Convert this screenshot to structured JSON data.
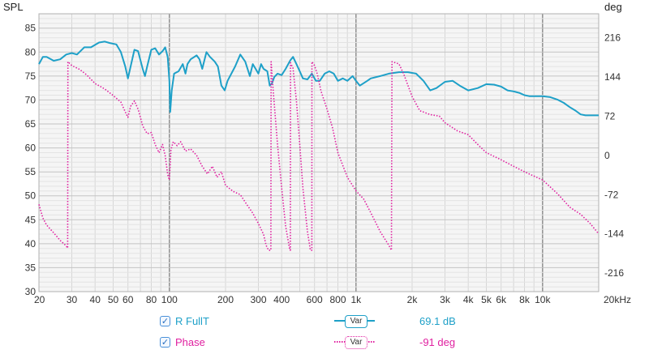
{
  "chart_data": {
    "type": "line",
    "x_scale": "log",
    "xlim": [
      20,
      20000
    ],
    "left_axis": {
      "label": "SPL",
      "ylim": [
        30,
        88
      ],
      "ticks": [
        30,
        35,
        40,
        45,
        50,
        55,
        60,
        65,
        70,
        75,
        80,
        85
      ]
    },
    "right_axis": {
      "label": "deg",
      "ylim": [
        -250,
        260
      ],
      "ticks": [
        -216,
        -144,
        -72,
        0,
        72,
        144,
        216
      ]
    },
    "x_ticks": [
      {
        "v": 20,
        "label": "20"
      },
      {
        "v": 30,
        "label": "30"
      },
      {
        "v": 40,
        "label": "40"
      },
      {
        "v": 50,
        "label": "50"
      },
      {
        "v": 60,
        "label": "60"
      },
      {
        "v": 80,
        "label": "80"
      },
      {
        "v": 100,
        "label": "100"
      },
      {
        "v": 200,
        "label": "200"
      },
      {
        "v": 300,
        "label": "300"
      },
      {
        "v": 400,
        "label": "400"
      },
      {
        "v": 600,
        "label": "600"
      },
      {
        "v": 800,
        "label": "800"
      },
      {
        "v": 1000,
        "label": "1k"
      },
      {
        "v": 2000,
        "label": "2k"
      },
      {
        "v": 3000,
        "label": "3k"
      },
      {
        "v": 4000,
        "label": "4k"
      },
      {
        "v": 5000,
        "label": "5k"
      },
      {
        "v": 6000,
        "label": "6k"
      },
      {
        "v": 8000,
        "label": "8k"
      },
      {
        "v": 10000,
        "label": "10k"
      },
      {
        "v": 20000,
        "label": "20kHz"
      }
    ],
    "major_gridlines_x": [
      100,
      1000,
      10000
    ],
    "grid": true,
    "series": [
      {
        "name": "R FullT",
        "axis": "left",
        "color": "#1ea0c8",
        "style": "solid",
        "points": [
          [
            20,
            77.5
          ],
          [
            21,
            79
          ],
          [
            22,
            79
          ],
          [
            24,
            78.2
          ],
          [
            26,
            78.5
          ],
          [
            28,
            79.5
          ],
          [
            30,
            79.8
          ],
          [
            32,
            79.5
          ],
          [
            35,
            81
          ],
          [
            38,
            81
          ],
          [
            40,
            81.5
          ],
          [
            42,
            82
          ],
          [
            45,
            82.2
          ],
          [
            48,
            81.9
          ],
          [
            52,
            81.6
          ],
          [
            55,
            80
          ],
          [
            58,
            77
          ],
          [
            60,
            74.5
          ],
          [
            62,
            77
          ],
          [
            65,
            80.5
          ],
          [
            68,
            80.2
          ],
          [
            72,
            76.5
          ],
          [
            74,
            75
          ],
          [
            76,
            77
          ],
          [
            80,
            80.5
          ],
          [
            84,
            80.8
          ],
          [
            88,
            79.5
          ],
          [
            92,
            80.2
          ],
          [
            95,
            81
          ],
          [
            98,
            79
          ],
          [
            100,
            74
          ],
          [
            101,
            67.5
          ],
          [
            103,
            72
          ],
          [
            106,
            75.5
          ],
          [
            112,
            76
          ],
          [
            118,
            77.5
          ],
          [
            122,
            75.5
          ],
          [
            125,
            77.5
          ],
          [
            130,
            78.5
          ],
          [
            140,
            79.3
          ],
          [
            145,
            78.5
          ],
          [
            150,
            76.5
          ],
          [
            158,
            80
          ],
          [
            165,
            79
          ],
          [
            175,
            78
          ],
          [
            182,
            77
          ],
          [
            190,
            73
          ],
          [
            198,
            72
          ],
          [
            205,
            74
          ],
          [
            215,
            75.5
          ],
          [
            225,
            77
          ],
          [
            240,
            79.5
          ],
          [
            255,
            78
          ],
          [
            270,
            75
          ],
          [
            280,
            77.5
          ],
          [
            290,
            76.5
          ],
          [
            300,
            75.5
          ],
          [
            310,
            77.5
          ],
          [
            320,
            76.5
          ],
          [
            335,
            76
          ],
          [
            345,
            73
          ],
          [
            355,
            73.5
          ],
          [
            365,
            74.8
          ],
          [
            380,
            75.5
          ],
          [
            400,
            75.2
          ],
          [
            420,
            76.5
          ],
          [
            445,
            78.3
          ],
          [
            460,
            79
          ],
          [
            480,
            77.5
          ],
          [
            500,
            76
          ],
          [
            520,
            74.5
          ],
          [
            550,
            74.3
          ],
          [
            580,
            75.5
          ],
          [
            610,
            74
          ],
          [
            640,
            74
          ],
          [
            680,
            75.5
          ],
          [
            720,
            76
          ],
          [
            760,
            75.5
          ],
          [
            800,
            74
          ],
          [
            850,
            74.5
          ],
          [
            900,
            74
          ],
          [
            960,
            75
          ],
          [
            1000,
            74
          ],
          [
            1050,
            73
          ],
          [
            1150,
            74
          ],
          [
            1200,
            74.5
          ],
          [
            1350,
            75
          ],
          [
            1500,
            75.5
          ],
          [
            1700,
            75.8
          ],
          [
            1900,
            75.8
          ],
          [
            2100,
            75.5
          ],
          [
            2300,
            74
          ],
          [
            2500,
            72
          ],
          [
            2700,
            72.5
          ],
          [
            3000,
            73.8
          ],
          [
            3300,
            74
          ],
          [
            3600,
            73
          ],
          [
            4000,
            72
          ],
          [
            4500,
            72.5
          ],
          [
            5000,
            73.3
          ],
          [
            5500,
            73.2
          ],
          [
            6000,
            72.8
          ],
          [
            6500,
            72
          ],
          [
            7000,
            71.8
          ],
          [
            7500,
            71.5
          ],
          [
            8000,
            71
          ],
          [
            8500,
            70.8
          ],
          [
            9000,
            70.8
          ],
          [
            10000,
            70.8
          ],
          [
            11000,
            70.6
          ],
          [
            12000,
            70.1
          ],
          [
            13000,
            69.4
          ],
          [
            14000,
            68.5
          ],
          [
            15000,
            67.8
          ],
          [
            16000,
            67
          ],
          [
            17000,
            66.8
          ],
          [
            18500,
            66.8
          ],
          [
            20000,
            66.8
          ]
        ]
      },
      {
        "name": "Phase",
        "axis": "right",
        "color": "#e020a0",
        "style": "dotted",
        "points": [
          [
            20,
            -90
          ],
          [
            21,
            -115
          ],
          [
            22,
            -128
          ],
          [
            24,
            -142
          ],
          [
            26,
            -156
          ],
          [
            28,
            -166
          ],
          [
            28.5,
            -170
          ],
          [
            28.6,
            172
          ],
          [
            30,
            165
          ],
          [
            33,
            158
          ],
          [
            36,
            148
          ],
          [
            40,
            132
          ],
          [
            45,
            122
          ],
          [
            50,
            110
          ],
          [
            55,
            98
          ],
          [
            58,
            80
          ],
          [
            60,
            70
          ],
          [
            62,
            90
          ],
          [
            65,
            100
          ],
          [
            68,
            85
          ],
          [
            70,
            70
          ],
          [
            72,
            54
          ],
          [
            76,
            40
          ],
          [
            80,
            42
          ],
          [
            84,
            20
          ],
          [
            88,
            5
          ],
          [
            92,
            20
          ],
          [
            95,
            0
          ],
          [
            98,
            -35
          ],
          [
            100,
            -45
          ],
          [
            102,
            10
          ],
          [
            105,
            25
          ],
          [
            110,
            18
          ],
          [
            115,
            25
          ],
          [
            122,
            8
          ],
          [
            130,
            12
          ],
          [
            140,
            0
          ],
          [
            150,
            -20
          ],
          [
            160,
            -34
          ],
          [
            170,
            -20
          ],
          [
            180,
            -40
          ],
          [
            190,
            -30
          ],
          [
            200,
            -55
          ],
          [
            220,
            -66
          ],
          [
            240,
            -72
          ],
          [
            260,
            -90
          ],
          [
            280,
            -106
          ],
          [
            300,
            -125
          ],
          [
            320,
            -145
          ],
          [
            330,
            -165
          ],
          [
            340,
            -174
          ],
          [
            350,
            -174
          ],
          [
            351,
            172
          ],
          [
            360,
            120
          ],
          [
            380,
            20
          ],
          [
            400,
            -60
          ],
          [
            420,
            -130
          ],
          [
            440,
            -170
          ],
          [
            445,
            -174
          ],
          [
            446,
            170
          ],
          [
            460,
            160
          ],
          [
            480,
            100
          ],
          [
            500,
            20
          ],
          [
            520,
            -60
          ],
          [
            550,
            -140
          ],
          [
            570,
            -174
          ],
          [
            580,
            -174
          ],
          [
            581,
            172
          ],
          [
            600,
            165
          ],
          [
            620,
            150
          ],
          [
            650,
            118
          ],
          [
            700,
            85
          ],
          [
            750,
            50
          ],
          [
            800,
            5
          ],
          [
            900,
            -40
          ],
          [
            1000,
            -65
          ],
          [
            1100,
            -80
          ],
          [
            1200,
            -105
          ],
          [
            1350,
            -140
          ],
          [
            1500,
            -165
          ],
          [
            1550,
            -174
          ],
          [
            1560,
            172
          ],
          [
            1700,
            168
          ],
          [
            1800,
            150
          ],
          [
            2000,
            108
          ],
          [
            2200,
            82
          ],
          [
            2500,
            75
          ],
          [
            2800,
            72
          ],
          [
            3000,
            60
          ],
          [
            3500,
            45
          ],
          [
            4000,
            38
          ],
          [
            4500,
            20
          ],
          [
            5000,
            5
          ],
          [
            6000,
            -8
          ],
          [
            7000,
            -20
          ],
          [
            8000,
            -30
          ],
          [
            9000,
            -38
          ],
          [
            10000,
            -45
          ],
          [
            12000,
            -70
          ],
          [
            14000,
            -95
          ],
          [
            16000,
            -108
          ],
          [
            18000,
            -125
          ],
          [
            20000,
            -144
          ]
        ]
      }
    ]
  },
  "legend": {
    "items": [
      {
        "label": "R FullT",
        "control": "Var",
        "value": "69.1 dB",
        "color": "#1ea0c8"
      },
      {
        "label": "Phase",
        "control": "Var",
        "value": "-91 deg",
        "color": "#e020a0"
      }
    ]
  }
}
